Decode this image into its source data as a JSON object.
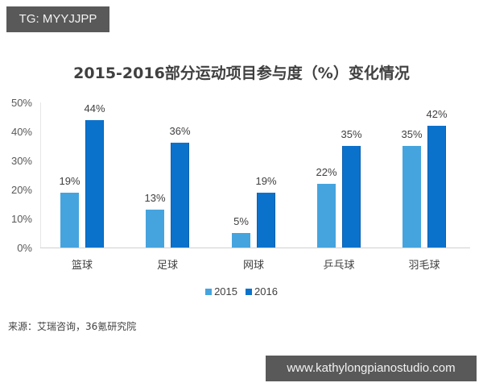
{
  "watermark_top": "TG: MYYJJPP",
  "watermark_bottom": "www.kathylongpianostudio.com",
  "source_text": "来源：艾瑞咨询，36氪研究院",
  "colors": {
    "s2015": "#45a4de",
    "s2016": "#0b72cc"
  },
  "chart_data": {
    "type": "bar",
    "title": "2015-2016部分运动项目参与度（%）变化情况",
    "xlabel": "",
    "ylabel": "",
    "ylim": [
      0,
      50
    ],
    "yticks": [
      "0%",
      "10%",
      "20%",
      "30%",
      "40%",
      "50%"
    ],
    "grid": false,
    "legend_position": "bottom",
    "categories": [
      "篮球",
      "足球",
      "网球",
      "乒乓球",
      "羽毛球"
    ],
    "series": [
      {
        "name": "2015",
        "values": [
          19,
          13,
          5,
          22,
          35
        ],
        "labels": [
          "19%",
          "13%",
          "5%",
          "22%",
          "35%"
        ]
      },
      {
        "name": "2016",
        "values": [
          44,
          36,
          19,
          35,
          42
        ],
        "labels": [
          "44%",
          "36%",
          "19%",
          "35%",
          "42%"
        ]
      }
    ]
  }
}
